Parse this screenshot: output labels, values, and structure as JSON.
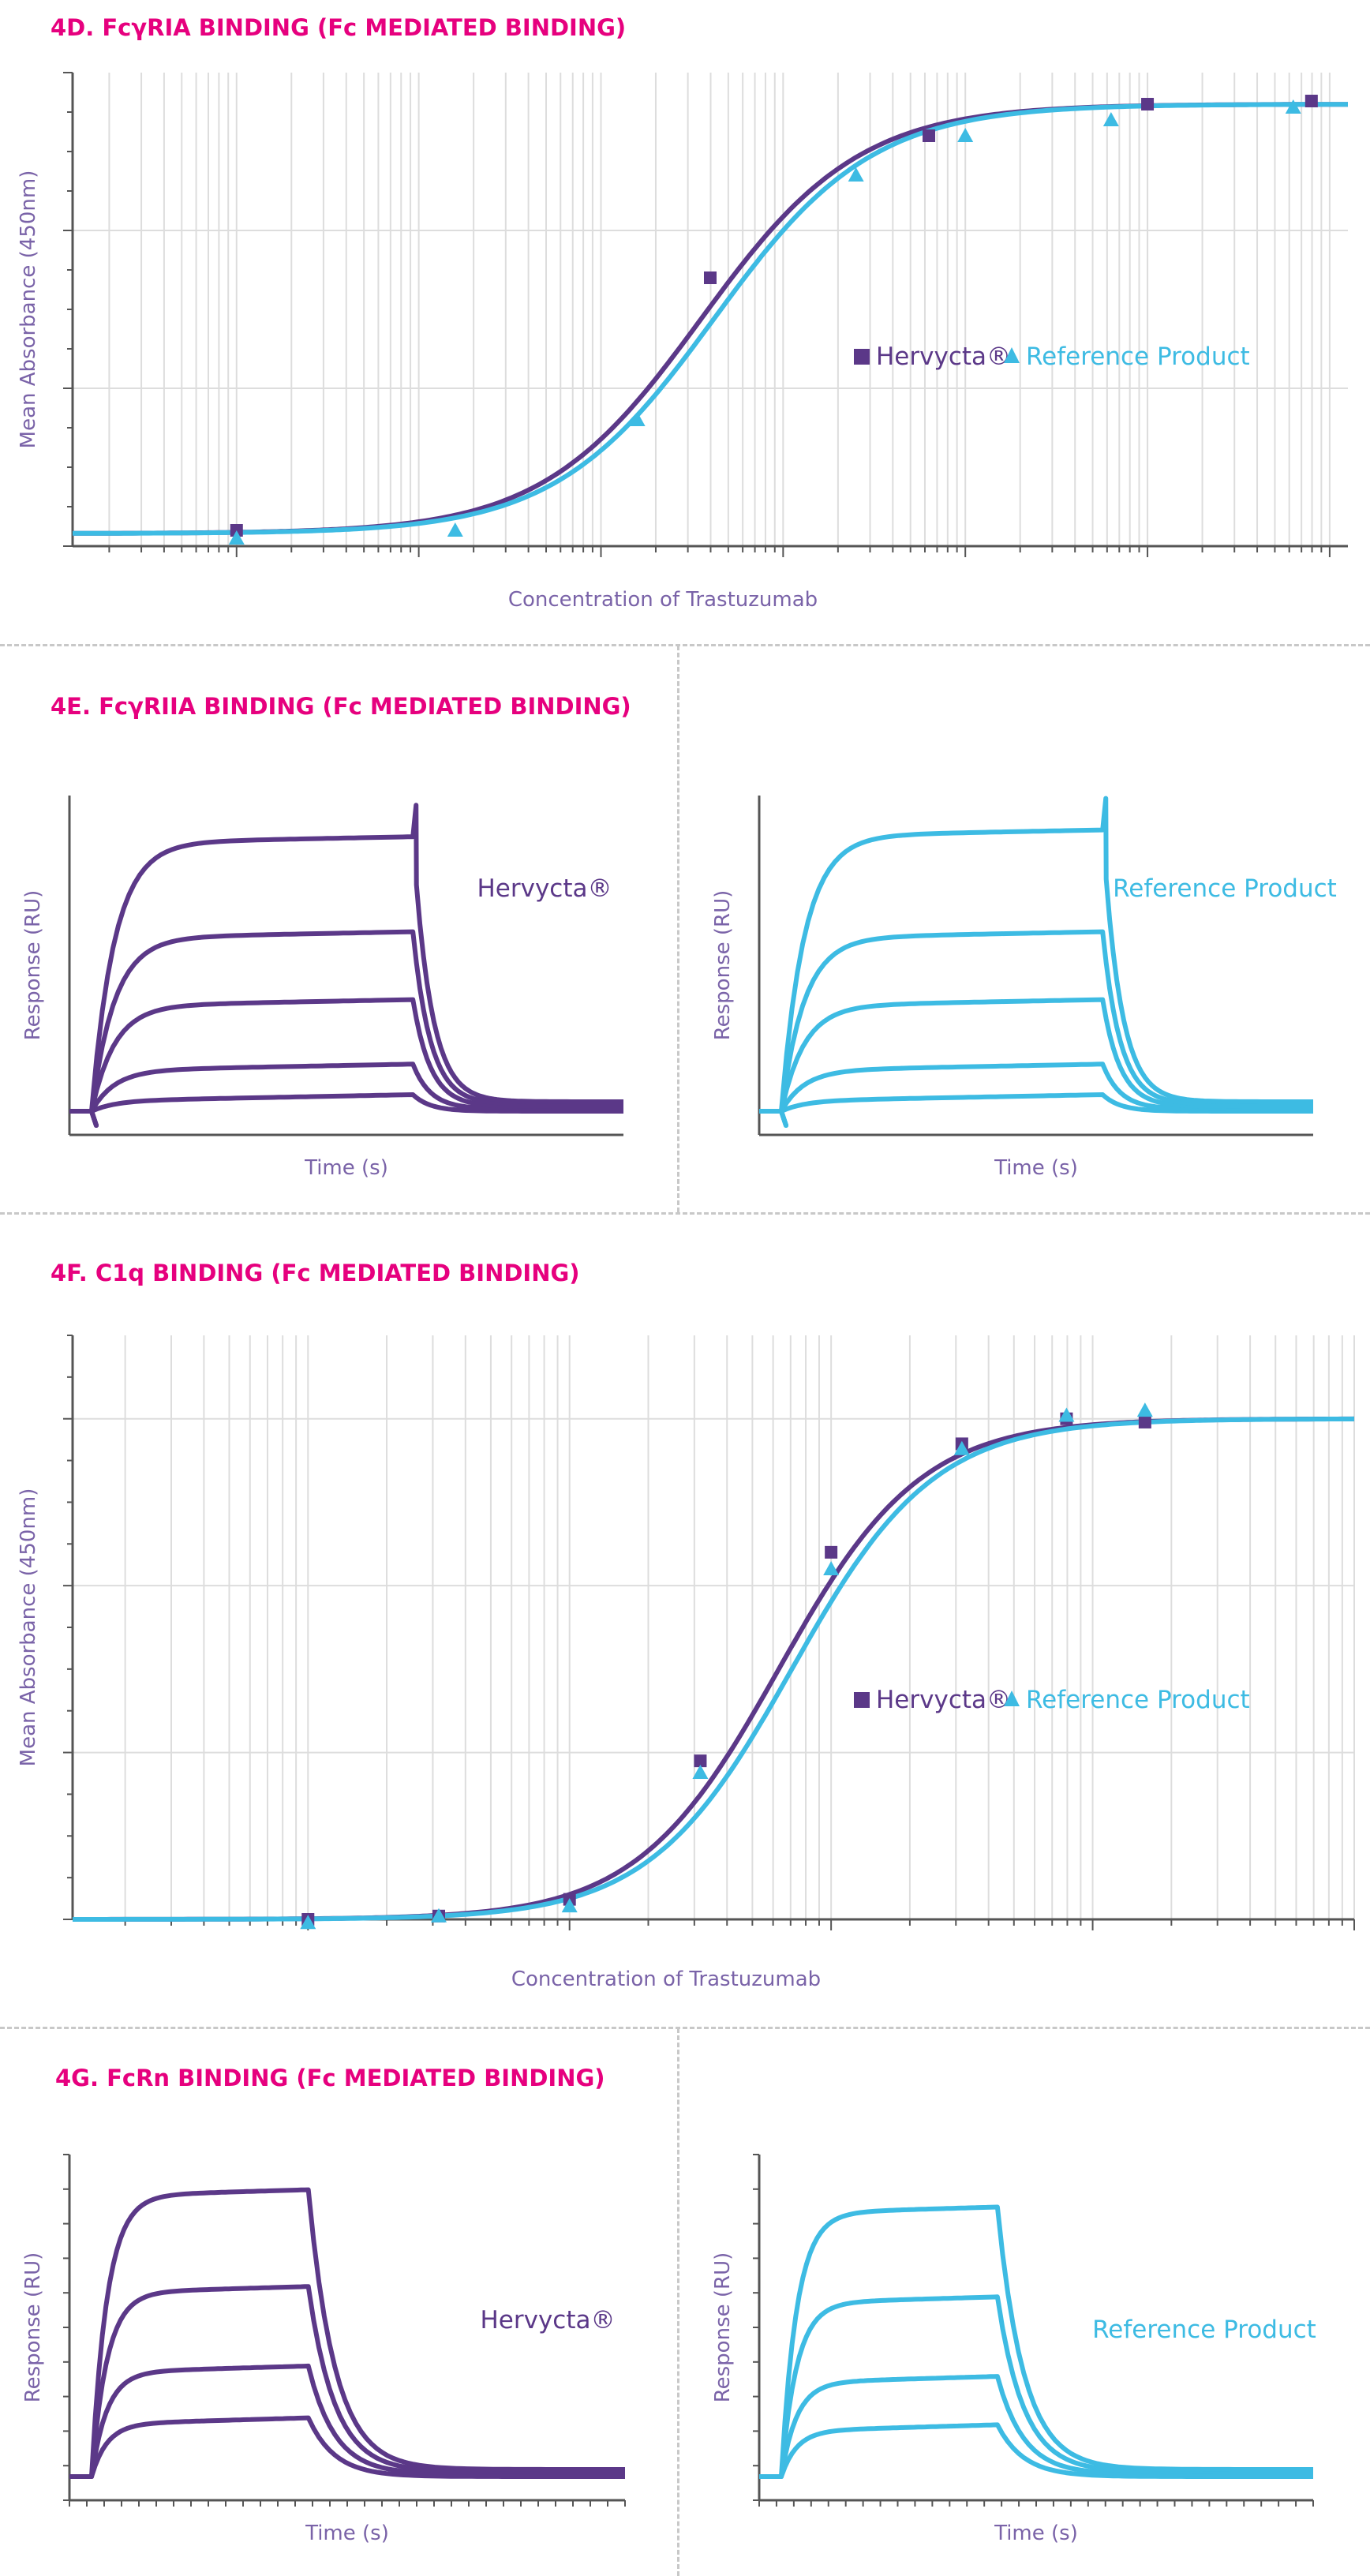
{
  "colors": {
    "purple": "#5b3888",
    "blue": "#3dbbe3",
    "magenta": "#e6007e",
    "axis": "#7a63a8",
    "grid": "#dddddd"
  },
  "page": {
    "section_4d_title": "4D. FcγRIA BINDING (Fc MEDIATED BINDING)",
    "section_4e_title": "4E. FcγRIIA BINDING (Fc MEDIATED BINDING)",
    "section_4f_title": "4F. C1q BINDING (Fc MEDIATED BINDING)",
    "section_4g_title": "4G. FcRn BINDING (Fc MEDIATED BINDING)"
  },
  "chart_data": [
    {
      "id": "4D",
      "type": "scatter",
      "title": "4D. FcγRIA BINDING (Fc MEDIATED BINDING)",
      "xlabel": "Concentration of Trastuzumab",
      "ylabel": "Mean Absorbance (450nm)",
      "xscale": "log",
      "xlim_log10": [
        -0.9,
        6.1
      ],
      "ylim": [
        0,
        3
      ],
      "legend": [
        "Hervycta®",
        "Reference Product"
      ],
      "legend_position": "center-right",
      "series": [
        {
          "name": "Hervycta®",
          "color": "#5b3888",
          "marker": "square",
          "x_log10": [
            0.0,
            2.6,
            3.8,
            5.0,
            5.9
          ],
          "y": [
            0.1,
            1.7,
            2.6,
            2.8,
            2.82
          ],
          "fit": {
            "bottom": 0.08,
            "top": 2.8,
            "ec50_log10": 2.55,
            "hill": 1.0
          }
        },
        {
          "name": "Reference Product",
          "color": "#3dbbe3",
          "marker": "triangle",
          "x_log10": [
            0.0,
            1.2,
            2.2,
            3.4,
            4.0,
            4.8,
            5.8
          ],
          "y": [
            0.05,
            0.1,
            0.8,
            2.35,
            2.6,
            2.7,
            2.78
          ],
          "fit": {
            "bottom": 0.08,
            "top": 2.8,
            "ec50_log10": 2.62,
            "hill": 1.0
          }
        }
      ]
    },
    {
      "id": "4E-hervycta",
      "type": "line",
      "title": "4E. FcγRIIA BINDING (Fc MEDIATED BINDING)",
      "xlabel": "Time (s)",
      "ylabel": "Response (RU)",
      "series_label": "Hervycta®",
      "color": "#5b3888",
      "plateaus": [
        0.1,
        0.19,
        0.38,
        0.58,
        0.86
      ],
      "association_end_fraction": 0.62
    },
    {
      "id": "4E-reference",
      "type": "line",
      "xlabel": "Time (s)",
      "ylabel": "Response (RU)",
      "series_label": "Reference Product",
      "color": "#3dbbe3",
      "plateaus": [
        0.1,
        0.19,
        0.38,
        0.58,
        0.88
      ],
      "association_end_fraction": 0.62
    },
    {
      "id": "4F",
      "type": "scatter",
      "title": "4F. C1q BINDING (Fc MEDIATED BINDING)",
      "xlabel": "Concentration of Trastuzumab",
      "ylabel": "Mean Absorbance (450nm)",
      "xscale": "log",
      "xlim_log10": [
        -0.9,
        4.0
      ],
      "ylim": [
        0,
        3.5
      ],
      "legend": [
        "Hervycta®",
        "Reference Product"
      ],
      "legend_position": "center-right",
      "series": [
        {
          "name": "Hervycta®",
          "color": "#5b3888",
          "marker": "square",
          "x_log10": [
            0.0,
            0.5,
            1.0,
            1.5,
            2.0,
            2.5,
            2.9,
            3.2
          ],
          "y": [
            0.0,
            0.02,
            0.12,
            0.95,
            2.2,
            2.85,
            3.0,
            2.98
          ],
          "fit": {
            "bottom": 0.0,
            "top": 3.0,
            "ec50_log10": 1.8,
            "hill": 1.6
          }
        },
        {
          "name": "Reference Product",
          "color": "#3dbbe3",
          "marker": "triangle",
          "x_log10": [
            0.0,
            0.5,
            1.0,
            1.5,
            2.0,
            2.5,
            2.9,
            3.2
          ],
          "y": [
            -0.02,
            0.02,
            0.08,
            0.88,
            2.1,
            2.82,
            3.02,
            3.05
          ],
          "fit": {
            "bottom": 0.0,
            "top": 3.0,
            "ec50_log10": 1.85,
            "hill": 1.6
          }
        }
      ]
    },
    {
      "id": "4G-hervycta",
      "type": "line",
      "title": "4G. FcRn BINDING (Fc MEDIATED BINDING)",
      "xlabel": "Time (s)",
      "ylabel": "Response (RU)",
      "series_label": "Hervycta®",
      "color": "#5b3888",
      "plateaus": [
        0.22,
        0.37,
        0.6,
        0.88
      ],
      "association_end_fraction": 0.43
    },
    {
      "id": "4G-reference",
      "type": "line",
      "xlabel": "Time (s)",
      "ylabel": "Response (RU)",
      "series_label": "Reference Product",
      "color": "#3dbbe3",
      "plateaus": [
        0.2,
        0.34,
        0.57,
        0.83
      ],
      "association_end_fraction": 0.43
    }
  ]
}
